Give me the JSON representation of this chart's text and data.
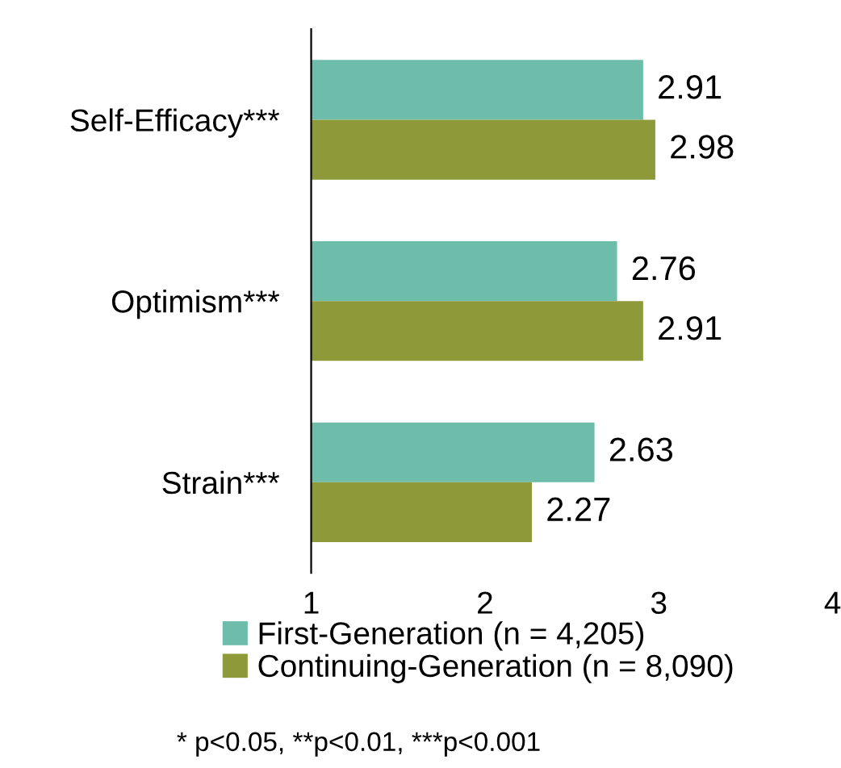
{
  "chart_data": {
    "type": "bar",
    "orientation": "horizontal",
    "categories": [
      "Self-Efficacy***",
      "Optimism***",
      "Strain***"
    ],
    "series": [
      {
        "name": "First-Generation (n = 4,205)",
        "color": "#6dbdaa",
        "values": [
          2.91,
          2.76,
          2.63
        ]
      },
      {
        "name": "Continuing-Generation (n = 8,090)",
        "color": "#8e9a3a",
        "values": [
          2.98,
          2.91,
          2.27
        ]
      }
    ],
    "xlim": [
      1,
      4
    ],
    "xticks": [
      1,
      2,
      3,
      4
    ],
    "data_labels": true,
    "grid": false,
    "legend": "bottom",
    "annotations": [
      "* p<0.05, **p<0.01, ***p<0.001"
    ]
  }
}
